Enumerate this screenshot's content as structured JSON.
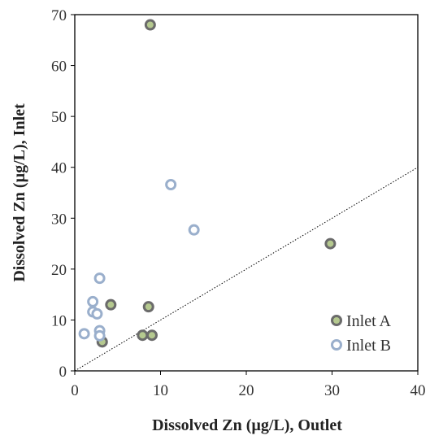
{
  "chart_data": {
    "type": "scatter",
    "xlabel": "Dissolved Zn (µg/L), Outlet",
    "ylabel": "Dissolved Zn (µg/L), Inlet",
    "xlim": [
      0,
      40
    ],
    "ylim": [
      0,
      70
    ],
    "xticks": [
      "0",
      "10",
      "20",
      "30",
      "40"
    ],
    "yticks": [
      "0",
      "10",
      "20",
      "30",
      "40",
      "50",
      "60",
      "70"
    ],
    "grid": false,
    "legend": "bottom-right",
    "reference_line": {
      "style": "dotted",
      "from": [
        0,
        0
      ],
      "to": [
        40,
        40
      ]
    },
    "series": [
      {
        "name": "Inlet A",
        "fill": "#b5c98f",
        "stroke": "#6b6b6b",
        "points": [
          {
            "x": 8.8,
            "y": 68
          },
          {
            "x": 29.8,
            "y": 25
          },
          {
            "x": 4.2,
            "y": 13
          },
          {
            "x": 8.6,
            "y": 12.6
          },
          {
            "x": 7.9,
            "y": 7
          },
          {
            "x": 9.0,
            "y": 7
          },
          {
            "x": 3.2,
            "y": 5.7
          }
        ]
      },
      {
        "name": "Inlet B",
        "fill": "#ffffff",
        "stroke": "#9aafcc",
        "points": [
          {
            "x": 11.2,
            "y": 36.6
          },
          {
            "x": 13.9,
            "y": 27.7
          },
          {
            "x": 2.9,
            "y": 18.2
          },
          {
            "x": 2.1,
            "y": 13.6
          },
          {
            "x": 2.1,
            "y": 11.6
          },
          {
            "x": 2.6,
            "y": 11.2
          },
          {
            "x": 2.9,
            "y": 7.9
          },
          {
            "x": 2.9,
            "y": 6.9
          },
          {
            "x": 1.1,
            "y": 7.3
          }
        ]
      }
    ]
  }
}
